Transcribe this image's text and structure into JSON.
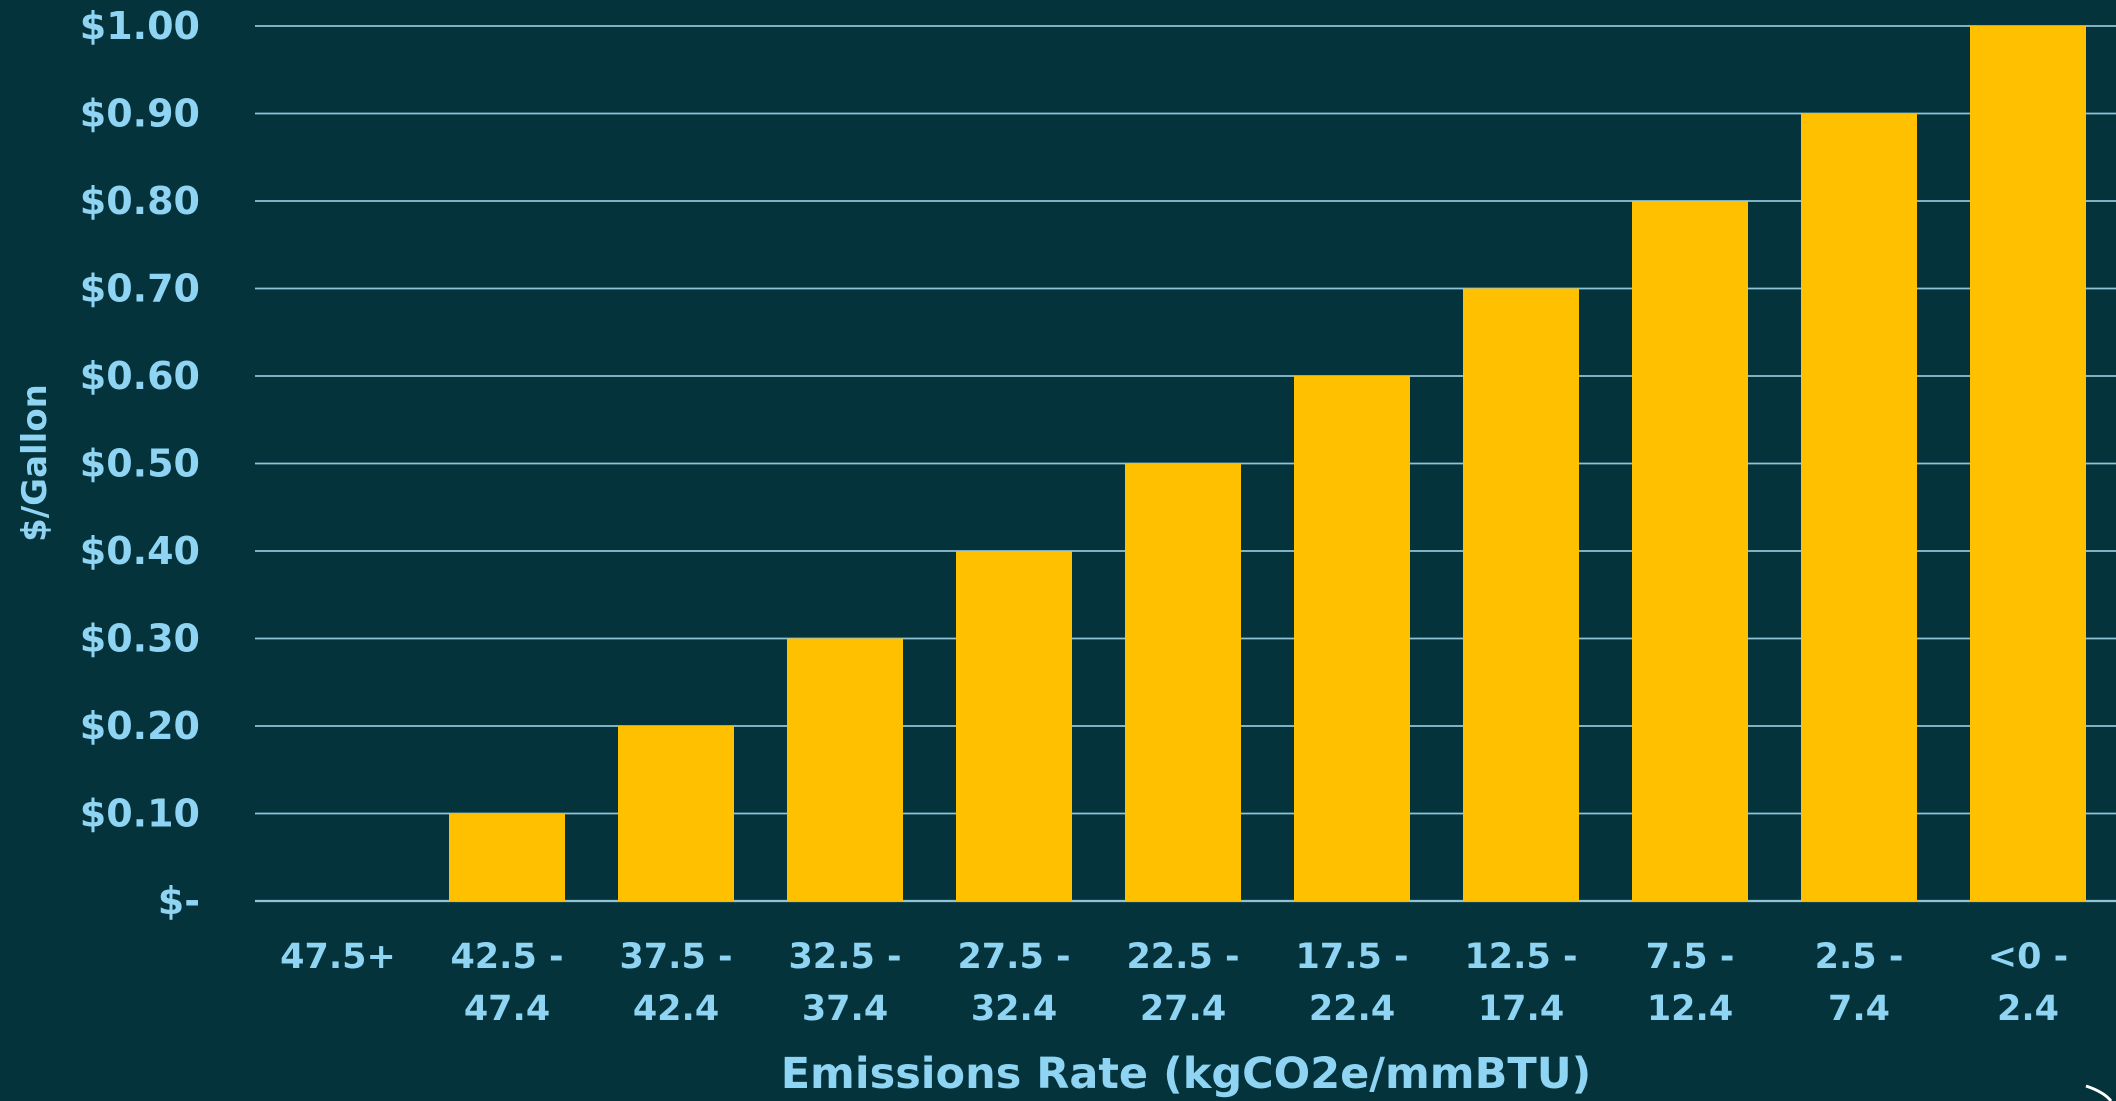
{
  "colors": {
    "background": "#04333c",
    "bar": "#ffc000",
    "text": "#8fd4f2",
    "gridline": "#8fc4d6"
  },
  "chart_data": {
    "type": "bar",
    "title": "",
    "xlabel": "Emissions Rate (kgCO2e/mmBTU)",
    "ylabel": "$/Gallon",
    "categories": [
      [
        "47.5+"
      ],
      [
        "42.5 -",
        "47.4"
      ],
      [
        "37.5 -",
        "42.4"
      ],
      [
        "32.5 -",
        "37.4"
      ],
      [
        "27.5 -",
        "32.4"
      ],
      [
        "22.5 -",
        "27.4"
      ],
      [
        "17.5 -",
        "22.4"
      ],
      [
        "12.5 -",
        "17.4"
      ],
      [
        "7.5 -",
        "12.4"
      ],
      [
        "2.5 -",
        "7.4"
      ],
      [
        "<0 -",
        "2.4"
      ]
    ],
    "values": [
      0.0,
      0.1,
      0.2,
      0.3,
      0.4,
      0.5,
      0.6,
      0.7,
      0.8,
      0.9,
      1.0
    ],
    "ylim": [
      0,
      1.0
    ],
    "yticks": [
      0,
      0.1,
      0.2,
      0.3,
      0.4,
      0.5,
      0.6,
      0.7,
      0.8,
      0.9,
      1.0
    ],
    "ytick_labels": [
      "$-",
      "$0.10",
      "$0.20",
      "$0.30",
      "$0.40",
      "$0.50",
      "$0.60",
      "$0.70",
      "$0.80",
      "$0.90",
      "$1.00"
    ],
    "grid": true,
    "legend": "none"
  }
}
